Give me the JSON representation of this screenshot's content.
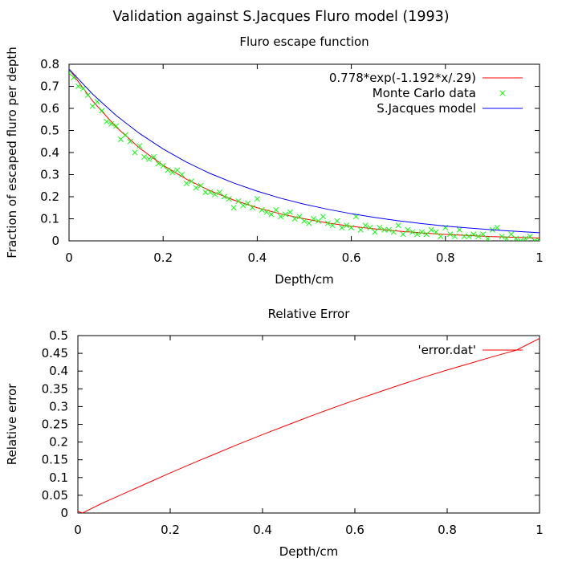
{
  "figure_title": "Validation against S.Jacques Fluro model (1993)",
  "chart_data": [
    {
      "type": "line",
      "title": "Fluro escape function",
      "xlabel": "Depth/cm",
      "ylabel": "Fraction of escaped fluro per depth",
      "xlim": [
        0,
        1
      ],
      "ylim": [
        0,
        0.8
      ],
      "xticks": [
        "0",
        "0.2",
        "0.4",
        "0.6",
        "0.8",
        "1"
      ],
      "xtick_values": [
        0,
        0.2,
        0.4,
        0.6,
        0.8,
        1
      ],
      "yticks": [
        "0",
        "0.1",
        "0.2",
        "0.3",
        "0.4",
        "0.5",
        "0.6",
        "0.7",
        "0.8"
      ],
      "ytick_values": [
        0,
        0.1,
        0.2,
        0.3,
        0.4,
        0.5,
        0.6,
        0.7,
        0.8
      ],
      "grid": false,
      "legend_position": "top-right",
      "series": [
        {
          "name": "0.778*exp(-1.192*x/.29)",
          "kind": "line",
          "color": "#ff0000",
          "x": [
            0,
            0.05,
            0.1,
            0.15,
            0.2,
            0.25,
            0.3,
            0.35,
            0.4,
            0.45,
            0.5,
            0.55,
            0.6,
            0.65,
            0.7,
            0.75,
            0.8,
            0.85,
            0.9,
            0.95,
            1
          ],
          "y": [
            0.778,
            0.634,
            0.516,
            0.42,
            0.342,
            0.279,
            0.227,
            0.185,
            0.15,
            0.122,
            0.1,
            0.081,
            0.066,
            0.054,
            0.044,
            0.036,
            0.029,
            0.024,
            0.019,
            0.016,
            0.013
          ]
        },
        {
          "name": "Monte Carlo data",
          "kind": "scatter",
          "marker": "x",
          "color": "#00ff00",
          "x": [
            0,
            0.01,
            0.02,
            0.03,
            0.04,
            0.05,
            0.06,
            0.07,
            0.08,
            0.09,
            0.1,
            0.11,
            0.12,
            0.13,
            0.14,
            0.15,
            0.16,
            0.17,
            0.18,
            0.19,
            0.2,
            0.21,
            0.22,
            0.23,
            0.24,
            0.25,
            0.26,
            0.27,
            0.28,
            0.29,
            0.3,
            0.31,
            0.32,
            0.33,
            0.34,
            0.35,
            0.36,
            0.37,
            0.38,
            0.39,
            0.4,
            0.41,
            0.42,
            0.43,
            0.44,
            0.45,
            0.46,
            0.47,
            0.48,
            0.49,
            0.5,
            0.51,
            0.52,
            0.53,
            0.54,
            0.55,
            0.56,
            0.57,
            0.58,
            0.59,
            0.6,
            0.61,
            0.62,
            0.63,
            0.64,
            0.65,
            0.66,
            0.67,
            0.68,
            0.69,
            0.7,
            0.71,
            0.72,
            0.73,
            0.74,
            0.75,
            0.76,
            0.77,
            0.78,
            0.79,
            0.8,
            0.81,
            0.82,
            0.83,
            0.84,
            0.85,
            0.86,
            0.87,
            0.88,
            0.89,
            0.9,
            0.91,
            0.92,
            0.93,
            0.94,
            0.95,
            0.96,
            0.97,
            0.98,
            0.99,
            1
          ],
          "y": [
            0.76,
            0.74,
            0.7,
            0.69,
            0.66,
            0.61,
            0.63,
            0.59,
            0.54,
            0.53,
            0.52,
            0.46,
            0.48,
            0.45,
            0.4,
            0.43,
            0.38,
            0.37,
            0.38,
            0.35,
            0.34,
            0.32,
            0.31,
            0.32,
            0.3,
            0.26,
            0.27,
            0.24,
            0.25,
            0.22,
            0.22,
            0.21,
            0.22,
            0.2,
            0.19,
            0.15,
            0.18,
            0.16,
            0.17,
            0.15,
            0.19,
            0.14,
            0.13,
            0.12,
            0.14,
            0.11,
            0.12,
            0.13,
            0.1,
            0.11,
            0.09,
            0.08,
            0.1,
            0.09,
            0.11,
            0.08,
            0.07,
            0.09,
            0.06,
            0.07,
            0.06,
            0.11,
            0.05,
            0.07,
            0.06,
            0.04,
            0.06,
            0.05,
            0.05,
            0.04,
            0.07,
            0.03,
            0.05,
            0.04,
            0.03,
            0.04,
            0.03,
            0.05,
            0.04,
            0.02,
            0.06,
            0.03,
            0.02,
            0.05,
            0.02,
            0.02,
            0.03,
            0.02,
            0.03,
            0.01,
            0.05,
            0.06,
            0.02,
            0.01,
            0.03,
            0.01,
            0.0,
            0.01,
            0.02,
            0.0,
            0.0
          ]
        },
        {
          "name": "S.Jacques model",
          "kind": "line",
          "color": "#0000ff",
          "x": [
            0,
            0.05,
            0.1,
            0.15,
            0.2,
            0.25,
            0.3,
            0.35,
            0.4,
            0.45,
            0.5,
            0.55,
            0.6,
            0.65,
            0.7,
            0.75,
            0.8,
            0.85,
            0.9,
            0.95,
            1
          ],
          "y": [
            0.778,
            0.665,
            0.568,
            0.486,
            0.416,
            0.356,
            0.305,
            0.262,
            0.225,
            0.193,
            0.166,
            0.143,
            0.123,
            0.106,
            0.091,
            0.078,
            0.067,
            0.058,
            0.05,
            0.043,
            0.037
          ]
        }
      ]
    },
    {
      "type": "line",
      "title": "Relative Error",
      "xlabel": "Depth/cm",
      "ylabel": "Relative error",
      "xlim": [
        0,
        1
      ],
      "ylim": [
        0,
        0.5
      ],
      "xticks": [
        "0",
        "0.2",
        "0.4",
        "0.6",
        "0.8",
        "1"
      ],
      "xtick_values": [
        0,
        0.2,
        0.4,
        0.6,
        0.8,
        1
      ],
      "yticks": [
        "0",
        "0.05",
        "0.1",
        "0.15",
        "0.2",
        "0.25",
        "0.3",
        "0.35",
        "0.4",
        "0.45",
        "0.5"
      ],
      "ytick_values": [
        0,
        0.05,
        0.1,
        0.15,
        0.2,
        0.25,
        0.3,
        0.35,
        0.4,
        0.45,
        0.5
      ],
      "grid": false,
      "legend_position": "top-right",
      "series": [
        {
          "name": "'error.dat'",
          "kind": "line",
          "color": "#ff0000",
          "x": [
            0,
            0.01,
            0.05,
            0.1,
            0.15,
            0.2,
            0.25,
            0.3,
            0.35,
            0.4,
            0.45,
            0.5,
            0.55,
            0.6,
            0.65,
            0.7,
            0.75,
            0.8,
            0.85,
            0.9,
            0.95,
            1
          ],
          "y": [
            0.005,
            0.0,
            0.026,
            0.055,
            0.084,
            0.113,
            0.141,
            0.168,
            0.195,
            0.221,
            0.246,
            0.271,
            0.295,
            0.318,
            0.34,
            0.362,
            0.383,
            0.403,
            0.422,
            0.441,
            0.459,
            0.492
          ]
        }
      ]
    }
  ]
}
